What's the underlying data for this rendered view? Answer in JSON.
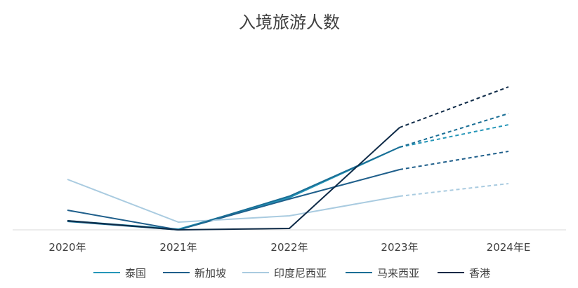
{
  "chart_data": {
    "type": "line",
    "title": "入境旅游人数",
    "xlabel": "",
    "ylabel": "",
    "categories": [
      "2020年",
      "2021年",
      "2022年",
      "2023年",
      "2024年E"
    ],
    "forecast_from_index": 3,
    "ylim": [
      0,
      100
    ],
    "grid": false,
    "legend": "bottom",
    "series": [
      {
        "name": "泰国",
        "color": "#2596b8",
        "values": [
          6.5,
          0.5,
          23,
          59,
          75
        ]
      },
      {
        "name": "新加坡",
        "color": "#1f5f8b",
        "values": [
          14,
          0,
          22,
          43,
          56
        ]
      },
      {
        "name": "印度尼西亚",
        "color": "#a9cbe0",
        "values": [
          36,
          5.5,
          10,
          24,
          33
        ]
      },
      {
        "name": "马来西亚",
        "color": "#1a6e95",
        "values": [
          6,
          0,
          24,
          59,
          83
        ]
      },
      {
        "name": "香港",
        "color": "#0e2a47",
        "values": [
          6.5,
          0,
          1,
          73,
          102
        ]
      }
    ]
  }
}
